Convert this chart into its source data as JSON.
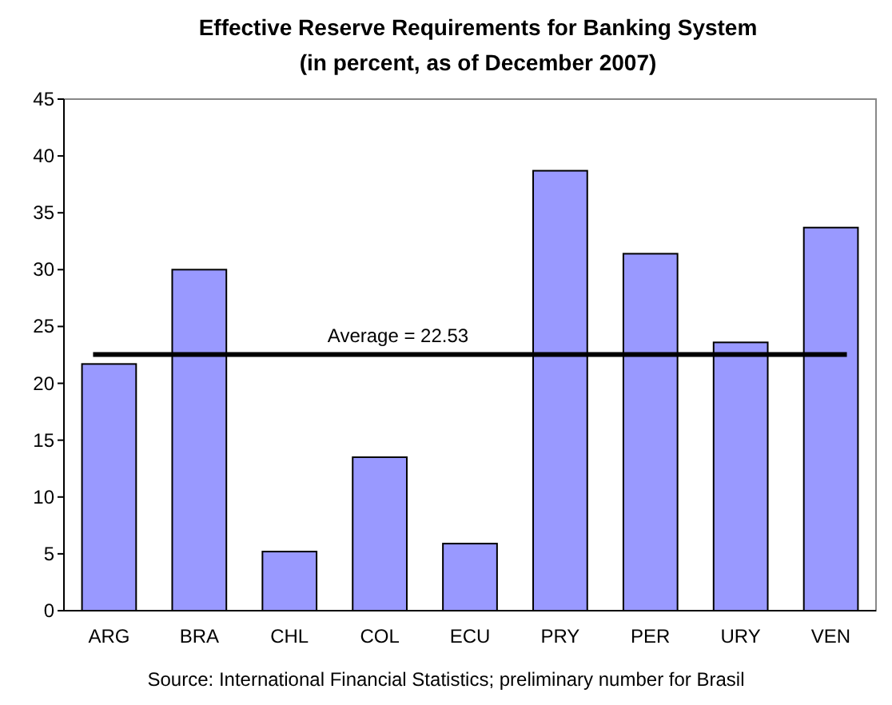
{
  "chart_data": {
    "type": "bar",
    "title": "Effective Reserve Requirements for Banking System",
    "subtitle": "(in percent, as of December 2007)",
    "categories": [
      "ARG",
      "BRA",
      "CHL",
      "COL",
      "ECU",
      "PRY",
      "PER",
      "URY",
      "VEN"
    ],
    "values": [
      21.7,
      30.0,
      5.2,
      13.5,
      5.9,
      38.7,
      31.4,
      23.6,
      33.7
    ],
    "color": "#9999ff",
    "ylim": [
      0,
      45
    ],
    "yticks": [
      0,
      5,
      10,
      15,
      20,
      25,
      30,
      35,
      40,
      45
    ],
    "grid": false,
    "ref_lines": [
      {
        "axis": "y",
        "value": 22.53,
        "label": "Average = 22.53",
        "color": "#000000"
      }
    ],
    "annotations": [
      "Source: International Financial Statistics; preliminary number for Brasil"
    ]
  }
}
